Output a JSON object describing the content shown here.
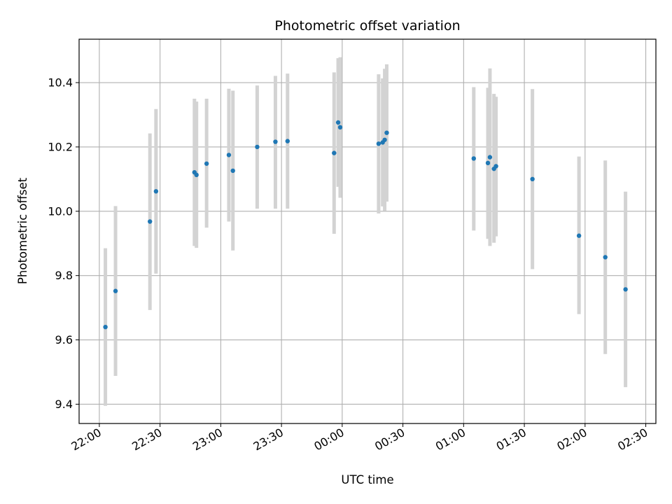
{
  "chart_data": {
    "type": "scatter",
    "title": "Photometric offset variation",
    "xlabel": "UTC time",
    "ylabel": "Photometric offset",
    "xlim": [
      "21:50",
      "02:35"
    ],
    "ylim": [
      9.34,
      10.535
    ],
    "grid": true,
    "x_ticks": [
      "22:00",
      "22:30",
      "23:00",
      "23:30",
      "00:00",
      "00:30",
      "01:00",
      "01:30",
      "02:00",
      "02:30"
    ],
    "y_ticks": [
      "9.4",
      "9.6",
      "9.8",
      "10.0",
      "10.2",
      "10.4"
    ],
    "colors": {
      "point": "#1f77b4",
      "errorbar": "#d3d3d3",
      "grid": "#b0b0b0"
    },
    "points": [
      {
        "x": "22:03",
        "y": 9.64,
        "lo": 9.395,
        "hi": 9.885
      },
      {
        "x": "22:08",
        "y": 9.752,
        "lo": 9.488,
        "hi": 10.016
      },
      {
        "x": "22:25",
        "y": 9.968,
        "lo": 9.693,
        "hi": 10.242
      },
      {
        "x": "22:28",
        "y": 10.062,
        "lo": 9.806,
        "hi": 10.318
      },
      {
        "x": "22:47",
        "y": 10.121,
        "lo": 9.892,
        "hi": 10.35
      },
      {
        "x": "22:48",
        "y": 10.113,
        "lo": 9.886,
        "hi": 10.341
      },
      {
        "x": "22:53",
        "y": 10.148,
        "lo": 9.949,
        "hi": 10.35
      },
      {
        "x": "23:04",
        "y": 10.175,
        "lo": 9.968,
        "hi": 10.381
      },
      {
        "x": "23:06",
        "y": 10.126,
        "lo": 9.878,
        "hi": 10.375
      },
      {
        "x": "23:18",
        "y": 10.2,
        "lo": 10.008,
        "hi": 10.391
      },
      {
        "x": "23:27",
        "y": 10.216,
        "lo": 10.008,
        "hi": 10.421
      },
      {
        "x": "23:33",
        "y": 10.218,
        "lo": 10.008,
        "hi": 10.428
      },
      {
        "x": "23:56",
        "y": 10.181,
        "lo": 9.93,
        "hi": 10.432
      },
      {
        "x": "23:58",
        "y": 10.276,
        "lo": 10.076,
        "hi": 10.476
      },
      {
        "x": "23:59",
        "y": 10.261,
        "lo": 10.042,
        "hi": 10.479
      },
      {
        "x": "00:18",
        "y": 10.21,
        "lo": 9.993,
        "hi": 10.426
      },
      {
        "x": "00:20",
        "y": 10.214,
        "lo": 10.015,
        "hi": 10.413
      },
      {
        "x": "00:21",
        "y": 10.222,
        "lo": 10.001,
        "hi": 10.443
      },
      {
        "x": "00:22",
        "y": 10.244,
        "lo": 10.03,
        "hi": 10.457
      },
      {
        "x": "01:05",
        "y": 10.164,
        "lo": 9.94,
        "hi": 10.386
      },
      {
        "x": "01:12",
        "y": 10.15,
        "lo": 9.914,
        "hi": 10.384
      },
      {
        "x": "01:13",
        "y": 10.168,
        "lo": 9.892,
        "hi": 10.444
      },
      {
        "x": "01:15",
        "y": 10.132,
        "lo": 9.902,
        "hi": 10.365
      },
      {
        "x": "01:16",
        "y": 10.14,
        "lo": 9.922,
        "hi": 10.356
      },
      {
        "x": "01:34",
        "y": 10.1,
        "lo": 9.82,
        "hi": 10.38
      },
      {
        "x": "01:57",
        "y": 9.924,
        "lo": 9.68,
        "hi": 10.17
      },
      {
        "x": "02:10",
        "y": 9.857,
        "lo": 9.556,
        "hi": 10.158
      },
      {
        "x": "02:20",
        "y": 9.757,
        "lo": 9.453,
        "hi": 10.061
      }
    ]
  }
}
